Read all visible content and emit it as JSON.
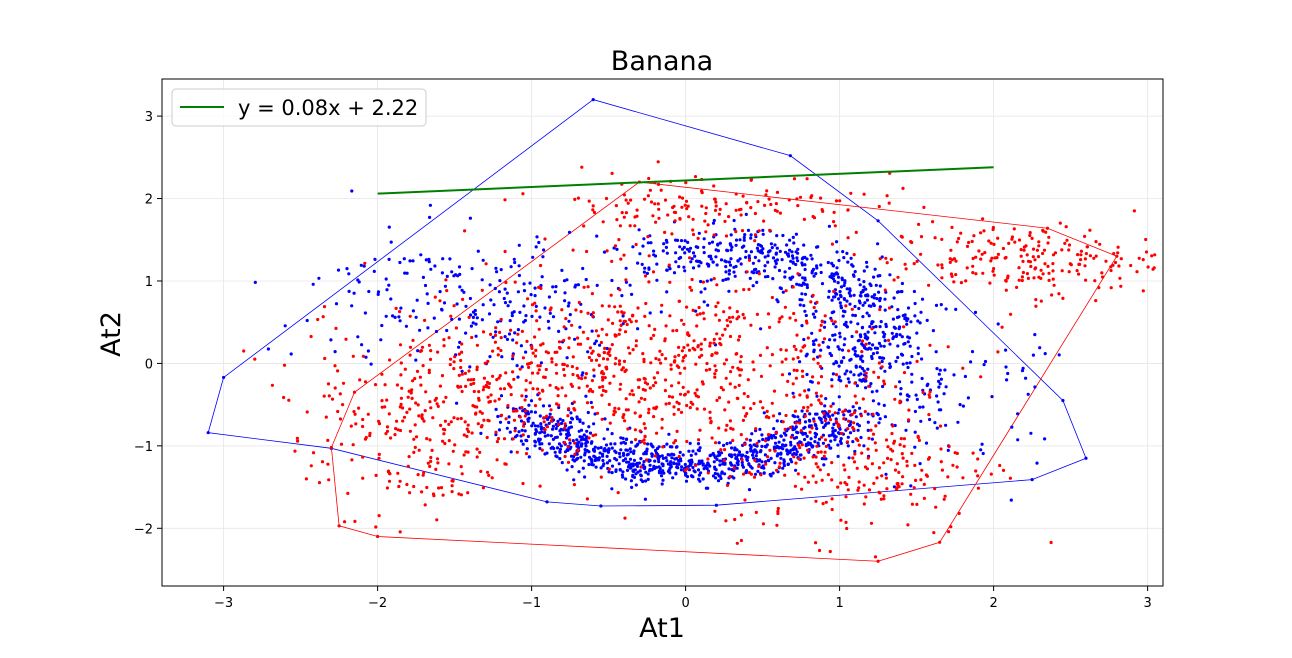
{
  "chart_data": {
    "type": "scatter",
    "title": "Banana",
    "xlabel": "At1",
    "ylabel": "At2",
    "xlim": [
      -3.4,
      3.1
    ],
    "ylim": [
      -2.7,
      3.45
    ],
    "x_ticks": [
      -3,
      -2,
      -1,
      0,
      1,
      2,
      3
    ],
    "y_ticks": [
      -2,
      -1,
      0,
      1,
      2,
      3
    ],
    "grid": true,
    "legend": {
      "location": "top-left",
      "entries": [
        "y = 0.08x + 2.22"
      ]
    },
    "colors": {
      "blue_class": "#0000ff",
      "red_class": "#ff0000",
      "line": "#008000"
    },
    "series": [
      {
        "kind": "line",
        "color": "#008000",
        "legend_label": "y = 0.08x + 2.22",
        "slope": 0.08,
        "intercept": 2.22,
        "x_range": [
          -2,
          2
        ]
      },
      {
        "kind": "scatter-cluster",
        "color": "#0000ff",
        "count_estimate": 1900,
        "regions": [
          {
            "shape": "arc",
            "cx": 0.0,
            "cy": -0.1,
            "rx": 1.1,
            "ry": 1.15,
            "from_deg": 205,
            "to_deg": 335,
            "spread": 0.28,
            "n": 900
          },
          {
            "shape": "arc",
            "cx": 0.2,
            "cy": 0.35,
            "rx": 1.0,
            "ry": 1.0,
            "from_deg": -30,
            "to_deg": 110,
            "spread": 0.35,
            "n": 620
          },
          {
            "shape": "blob",
            "cx": -1.3,
            "cy": 0.75,
            "sx": 0.55,
            "sy": 0.45,
            "n": 260
          },
          {
            "shape": "blob",
            "cx": 1.6,
            "cy": -0.4,
            "sx": 0.35,
            "sy": 0.45,
            "n": 120
          }
        ],
        "hull": [
          [
            -3.1,
            -0.84
          ],
          [
            -3.0,
            -0.17
          ],
          [
            -0.6,
            3.2
          ],
          [
            0.68,
            2.52
          ],
          [
            1.25,
            1.73
          ],
          [
            2.45,
            -0.45
          ],
          [
            2.6,
            -1.15
          ],
          [
            2.25,
            -1.41
          ],
          [
            0.2,
            -1.72
          ],
          [
            -0.55,
            -1.73
          ],
          [
            -0.9,
            -1.68
          ],
          [
            -2.3,
            -1.03
          ]
        ]
      },
      {
        "kind": "scatter-cluster",
        "color": "#ff0000",
        "count_estimate": 1700,
        "regions": [
          {
            "shape": "blob",
            "cx": -0.3,
            "cy": -0.05,
            "sx": 0.85,
            "sy": 0.55,
            "n": 800
          },
          {
            "shape": "blob",
            "cx": -1.7,
            "cy": -0.9,
            "sx": 0.35,
            "sy": 0.55,
            "n": 240
          },
          {
            "shape": "blob",
            "cx": 1.1,
            "cy": -1.2,
            "sx": 0.45,
            "sy": 0.45,
            "n": 240
          },
          {
            "shape": "blob",
            "cx": 0.1,
            "cy": 1.9,
            "sx": 0.55,
            "sy": 0.22,
            "n": 160
          },
          {
            "shape": "blob",
            "cx": 2.2,
            "cy": 1.25,
            "sx": 0.45,
            "sy": 0.22,
            "n": 220
          }
        ],
        "hull": [
          [
            -2.3,
            -1.02
          ],
          [
            -2.25,
            -1.97
          ],
          [
            -2.0,
            -2.1
          ],
          [
            1.25,
            -2.4
          ],
          [
            1.65,
            -2.17
          ],
          [
            2.8,
            1.3
          ],
          [
            2.35,
            1.64
          ],
          [
            -0.3,
            2.2
          ],
          [
            -2.15,
            -0.35
          ]
        ]
      }
    ]
  }
}
